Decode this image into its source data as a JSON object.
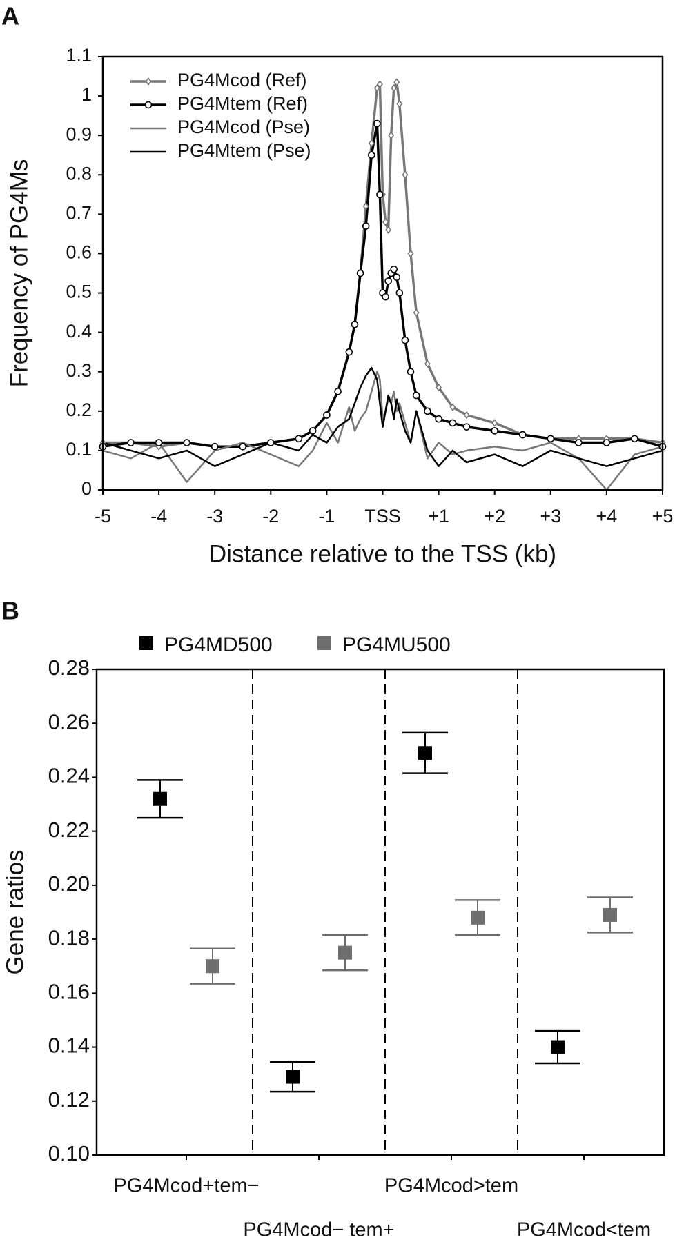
{
  "chart_data": [
    {
      "type": "line",
      "panel_label": "A",
      "y_label": "Frequency of PG4Ms",
      "x_label": "Distance relative to the TSS (kb)",
      "xlim": [
        -5,
        5
      ],
      "ylim": [
        0,
        1.1
      ],
      "xticks": [
        -5,
        -4,
        -3,
        -2,
        -1,
        {
          "value": 0,
          "label": "TSS"
        },
        {
          "value": 1,
          "label": "+1"
        },
        {
          "value": 2,
          "label": "+2"
        },
        {
          "value": 3,
          "label": "+3"
        },
        {
          "value": 4,
          "label": "+4"
        },
        {
          "value": 5,
          "label": "+5"
        }
      ],
      "yticks": [
        0,
        0.1,
        0.2,
        0.3,
        0.4,
        0.5,
        0.6,
        0.7,
        0.8,
        0.9,
        1,
        1.1
      ],
      "legend": "upper left",
      "x": [
        -5,
        -4.5,
        -4,
        -3.5,
        -3,
        -2.5,
        -2,
        -1.5,
        -1.25,
        -1,
        -0.8,
        -0.6,
        -0.5,
        -0.4,
        -0.3,
        -0.2,
        -0.1,
        -0.05,
        0,
        0.05,
        0.1,
        0.15,
        0.2,
        0.25,
        0.3,
        0.4,
        0.5,
        0.6,
        0.8,
        1,
        1.25,
        1.5,
        2,
        2.5,
        3,
        3.5,
        4,
        4.5,
        5
      ],
      "series": [
        {
          "name": "PG4Mcod (Ref)",
          "color": "#777777",
          "width": 3.5,
          "marker": "diamond",
          "values": [
            0.12,
            0.12,
            0.11,
            0.12,
            0.11,
            0.11,
            0.12,
            0.13,
            0.15,
            0.19,
            0.25,
            0.35,
            0.42,
            0.55,
            0.72,
            0.88,
            1.02,
            1.03,
            0.75,
            0.68,
            0.66,
            0.9,
            1.02,
            1.035,
            0.98,
            0.8,
            0.6,
            0.45,
            0.32,
            0.26,
            0.21,
            0.19,
            0.17,
            0.14,
            0.13,
            0.13,
            0.13,
            0.13,
            0.12
          ]
        },
        {
          "name": "PG4Mtem (Ref)",
          "color": "#000000",
          "width": 3.5,
          "marker": "circle",
          "values": [
            0.11,
            0.12,
            0.12,
            0.12,
            0.11,
            0.11,
            0.12,
            0.13,
            0.15,
            0.19,
            0.25,
            0.35,
            0.42,
            0.55,
            0.67,
            0.85,
            0.93,
            0.75,
            0.5,
            0.49,
            0.53,
            0.55,
            0.56,
            0.54,
            0.5,
            0.38,
            0.3,
            0.24,
            0.2,
            0.18,
            0.17,
            0.16,
            0.15,
            0.14,
            0.13,
            0.12,
            0.12,
            0.13,
            0.11
          ]
        },
        {
          "name": "PG4Mcod (Pse)",
          "color": "#777777",
          "width": 2.5,
          "marker": null,
          "values": [
            0.1,
            0.08,
            0.12,
            0.02,
            0.1,
            0.12,
            0.09,
            0.06,
            0.1,
            0.17,
            0.12,
            0.21,
            0.15,
            0.18,
            0.2,
            0.25,
            0.3,
            0.28,
            0.18,
            0.2,
            0.23,
            0.22,
            0.25,
            0.2,
            0.22,
            0.17,
            0.12,
            0.2,
            0.08,
            0.12,
            0.09,
            0.1,
            0.11,
            0.1,
            0.12,
            0.08,
            0.0,
            0.09,
            0.11
          ]
        },
        {
          "name": "PG4Mtem (Pse)",
          "color": "#000000",
          "width": 2.5,
          "marker": null,
          "values": [
            0.12,
            0.1,
            0.08,
            0.1,
            0.06,
            0.09,
            0.12,
            0.1,
            0.14,
            0.12,
            0.16,
            0.18,
            0.22,
            0.26,
            0.29,
            0.31,
            0.28,
            0.22,
            0.16,
            0.2,
            0.24,
            0.22,
            0.18,
            0.23,
            0.2,
            0.15,
            0.12,
            0.2,
            0.1,
            0.06,
            0.1,
            0.07,
            0.09,
            0.06,
            0.1,
            0.08,
            0.06,
            0.08,
            0.1
          ]
        }
      ]
    },
    {
      "type": "errorpoint",
      "panel_label": "B",
      "y_label": "Gene ratios",
      "ylim": [
        0.1,
        0.28
      ],
      "yticks": [
        {
          "value": 0.1,
          "label": "0.10"
        },
        0.12,
        0.14,
        0.16,
        0.18,
        {
          "value": 0.2,
          "label": "0.20"
        },
        0.22,
        0.24,
        0.26,
        0.28
      ],
      "categories": [
        "PG4Mcod+tem−",
        "PG4Mcod− tem+",
        "PG4Mcod>tem",
        "PG4Mcod<tem"
      ],
      "separators": "dashed",
      "series": [
        {
          "name": "PG4MD500",
          "color": "#000000",
          "values": [
            0.232,
            0.129,
            0.249,
            0.14
          ],
          "errors": [
            0.007,
            0.0055,
            0.0075,
            0.006
          ]
        },
        {
          "name": "PG4MU500",
          "color": "#6e6e6e",
          "values": [
            0.17,
            0.175,
            0.188,
            0.189
          ],
          "errors": [
            0.0065,
            0.0065,
            0.0065,
            0.0065
          ]
        }
      ]
    }
  ]
}
